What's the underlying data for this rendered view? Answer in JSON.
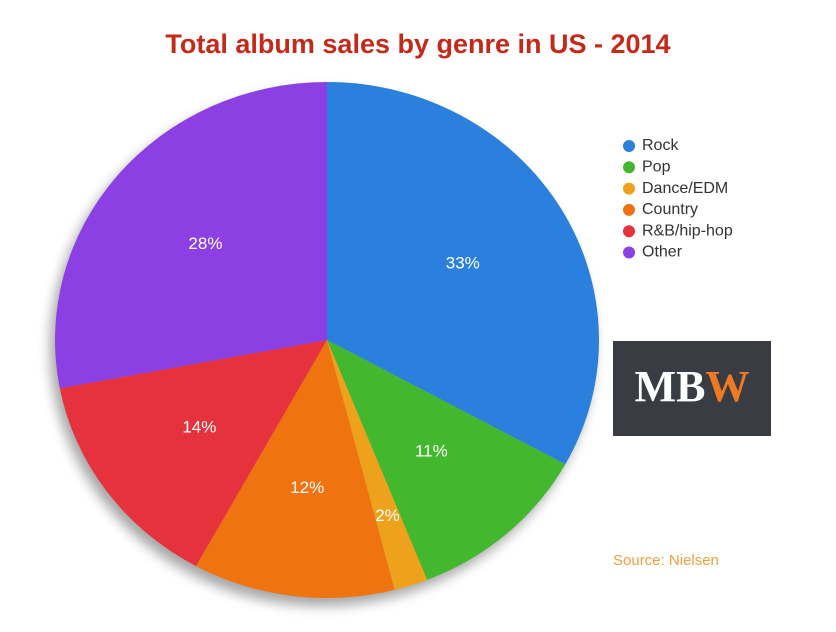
{
  "chart_data": {
    "type": "pie",
    "title": "Total album sales by genre in US - 2014",
    "categories": [
      "Rock",
      "Pop",
      "Dance/EDM",
      "Country",
      "R&B/hip-hop",
      "Other"
    ],
    "values": [
      33,
      11,
      2,
      12,
      14,
      28
    ],
    "value_labels": [
      "33%",
      "11%",
      "2%",
      "12%",
      "14%",
      "28%"
    ],
    "colors": [
      "#2a80dc",
      "#43b82e",
      "#eea21c",
      "#ef7410",
      "#e5323c",
      "#8c40e4"
    ],
    "legend": "right",
    "source": "Source: Nielsen"
  },
  "logo": [
    "MB",
    "W"
  ]
}
